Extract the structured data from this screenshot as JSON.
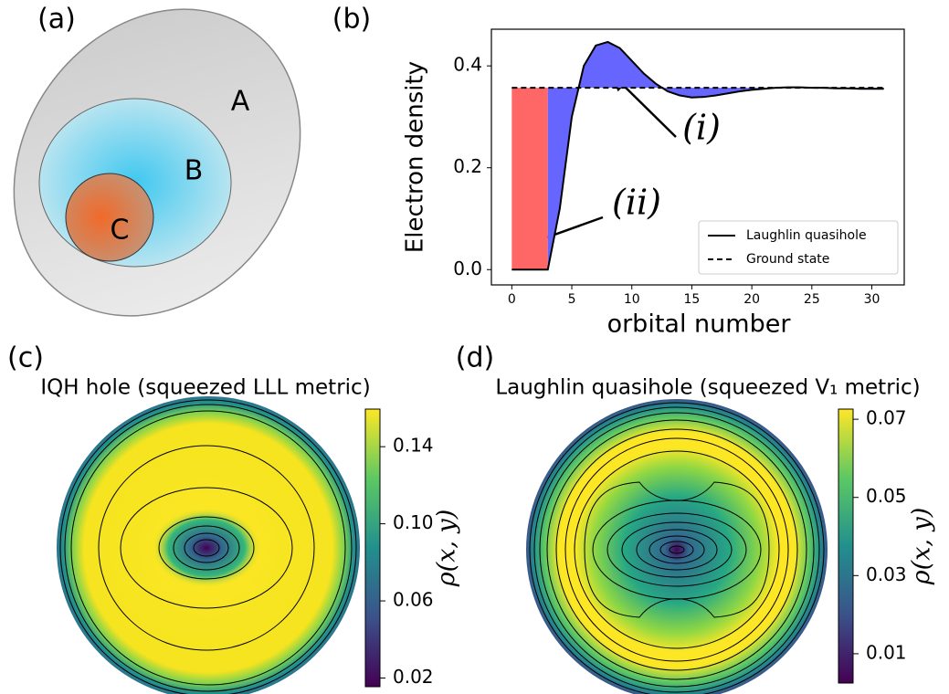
{
  "figure": {
    "panel_labels": [
      "(a)",
      "(b)",
      "(c)",
      "(d)"
    ]
  },
  "diagram": {
    "labels": [
      "A",
      "B",
      "C"
    ]
  },
  "chart_data": [
    {
      "type": "line",
      "xlabel": "orbital number",
      "ylabel": "Electron density",
      "x": [
        0,
        1,
        2,
        3,
        4,
        5,
        6,
        7,
        8,
        9,
        10,
        11,
        12,
        13,
        14,
        15,
        16,
        17,
        18,
        19,
        20,
        21,
        22,
        23,
        24,
        25,
        26,
        27,
        28,
        29,
        30,
        31
      ],
      "xlim": [
        -1.7,
        32.7
      ],
      "ylim": [
        -0.03,
        0.472
      ],
      "xticks": [
        0,
        5,
        10,
        15,
        20,
        25,
        30
      ],
      "yticks": [
        {
          "value": 0,
          "label": "0.0"
        },
        {
          "value": 0.2,
          "label": "0.2"
        },
        {
          "value": 0.4,
          "label": "0.4"
        }
      ],
      "series": [
        {
          "name": "Laughlin quasihole",
          "color": "#000000",
          "dash": "solid",
          "values": [
            0,
            0,
            0,
            0,
            0.12,
            0.3,
            0.4,
            0.44,
            0.447,
            0.435,
            0.41,
            0.385,
            0.365,
            0.35,
            0.342,
            0.338,
            0.339,
            0.342,
            0.346,
            0.35,
            0.353,
            0.355,
            0.357,
            0.358,
            0.358,
            0.357,
            0.357,
            0.356,
            0.356,
            0.355,
            0.355,
            0.355
          ]
        },
        {
          "name": "Ground state",
          "color": "#000000",
          "dash": "dashed",
          "values": [
            0.357,
            0.357,
            0.357,
            0.357,
            0.357,
            0.357,
            0.357,
            0.357,
            0.357,
            0.357,
            0.357,
            0.357,
            0.357,
            0.357,
            0.357,
            0.357,
            0.357,
            0.357,
            0.357,
            0.357,
            0.357,
            0.357,
            0.357,
            0.357,
            0.357,
            0.357,
            0.357,
            0.357,
            0.357,
            0.357,
            0.357,
            0.357
          ]
        }
      ],
      "fills": {
        "hole": "#ff6666",
        "difference": "#6666ff"
      },
      "annotations": [
        {
          "text": "(i)",
          "color": "#4d4dff"
        },
        {
          "text": "(ii)",
          "color": "#ff2020"
        }
      ],
      "legend": "lower right"
    },
    {
      "type": "heatmap",
      "title": "IQH hole (squeezed LLL metric)",
      "colorbar_label": "ρ(x, y)",
      "clim": [
        0.0155,
        0.1595
      ],
      "cticks": [
        0.02,
        0.06,
        {
          "value": 0.1,
          "label": "0.10"
        },
        0.14
      ]
    },
    {
      "type": "heatmap",
      "title": "Laughlin quasihole (squeezed V₁ metric)",
      "colorbar_label": "ρ(x, y)",
      "clim": [
        0.0025,
        0.0726
      ],
      "cticks": [
        0.01,
        0.03,
        0.05,
        0.07
      ]
    }
  ]
}
